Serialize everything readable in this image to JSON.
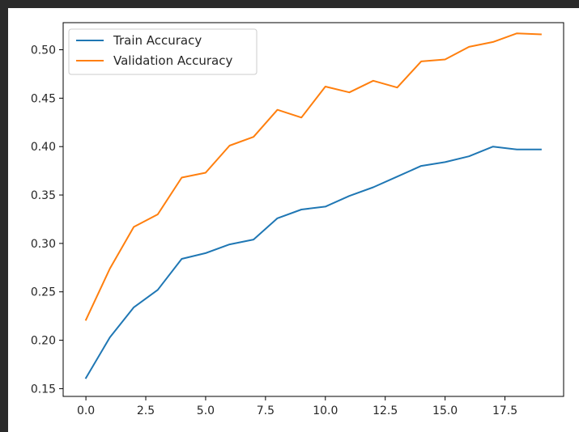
{
  "chart_data": {
    "type": "line",
    "title": "",
    "xlabel": "",
    "ylabel": "",
    "xlim": [
      -0.95,
      19.95
    ],
    "ylim": [
      0.142,
      0.528
    ],
    "x_ticks": [
      0.0,
      2.5,
      5.0,
      7.5,
      10.0,
      12.5,
      15.0,
      17.5
    ],
    "x_tick_labels": [
      "0.0",
      "2.5",
      "5.0",
      "7.5",
      "10.0",
      "12.5",
      "15.0",
      "17.5"
    ],
    "y_ticks": [
      0.15,
      0.2,
      0.25,
      0.3,
      0.35,
      0.4,
      0.45,
      0.5
    ],
    "y_tick_labels": [
      "0.15",
      "0.20",
      "0.25",
      "0.30",
      "0.35",
      "0.40",
      "0.45",
      "0.50"
    ],
    "grid": false,
    "legend_position": "top-left",
    "x": [
      0,
      1,
      2,
      3,
      4,
      5,
      6,
      7,
      8,
      9,
      10,
      11,
      12,
      13,
      14,
      15,
      16,
      17,
      18,
      19
    ],
    "series": [
      {
        "name": "Train Accuracy",
        "color": "#1f77b4",
        "values": [
          0.161,
          0.203,
          0.234,
          0.252,
          0.284,
          0.29,
          0.299,
          0.304,
          0.326,
          0.335,
          0.338,
          0.349,
          0.358,
          0.369,
          0.38,
          0.384,
          0.39,
          0.4,
          0.397,
          0.397
        ]
      },
      {
        "name": "Validation Accuracy",
        "color": "#ff7f0e",
        "values": [
          0.221,
          0.274,
          0.317,
          0.33,
          0.368,
          0.373,
          0.401,
          0.41,
          0.438,
          0.43,
          0.462,
          0.456,
          0.468,
          0.461,
          0.488,
          0.49,
          0.503,
          0.508,
          0.517,
          0.516
        ]
      }
    ]
  }
}
